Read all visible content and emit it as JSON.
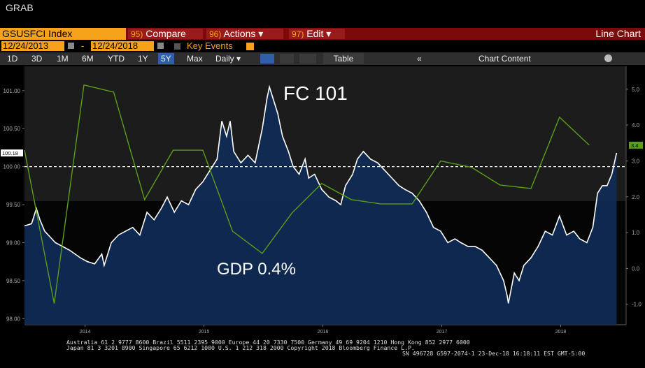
{
  "ui": {
    "window_title": "GRAB",
    "ticker": "GSUSFCI Index",
    "menu": [
      {
        "num": "95)",
        "label": "Compare"
      },
      {
        "num": "96)",
        "label": "Actions ▾"
      },
      {
        "num": "97)",
        "label": "Edit ▾"
      }
    ],
    "view_name": "Line Chart",
    "start_date": "12/24/2013",
    "date_sep": "-",
    "end_date": "12/24/2018",
    "key_events": "Key Events",
    "periods": [
      "1D",
      "3D",
      "1M",
      "6M",
      "YTD",
      "1Y",
      "5Y",
      "Max"
    ],
    "frequency": "Daily ▾",
    "table": "Table",
    "collapse": "«",
    "chart_content": "Chart Content",
    "footer": [
      "Australia 61 2 9777 8600 Brazil 5511 2395 9000 Europe 44 20 7330 7500 Germany 49 69 9204 1210 Hong Kong 852 2977 6000",
      "Japan 81 3 3201 8900       Singapore 65 6212 1000       U.S. 1 212 318 2000        Copyright 2018 Bloomberg Finance L.P.",
      "SN 496728 G597-2074-1 23-Dec-18 16:18:11 EST  GMT-5:00"
    ]
  },
  "chart_data": {
    "type": "line",
    "annotations": [
      "FC 101",
      "GDP 0.4%"
    ],
    "xlim": [
      2013.99,
      2019.05
    ],
    "xticks": [
      {
        "value": 2014.5,
        "label": "2014"
      },
      {
        "value": 2015.5,
        "label": "2015"
      },
      {
        "value": 2016.5,
        "label": "2016"
      },
      {
        "value": 2017.5,
        "label": "2017"
      },
      {
        "value": 2018.5,
        "label": "2018"
      }
    ],
    "ylim": [
      97.92,
      101.32
    ],
    "yticks": [
      {
        "value": 98,
        "label": "98.00"
      },
      {
        "value": 98.5,
        "label": "98.50"
      },
      {
        "value": 99,
        "label": "99.00"
      },
      {
        "value": 99.5,
        "label": "99.50"
      },
      {
        "value": 100,
        "label": "100.00"
      },
      {
        "value": 100.5,
        "label": "100.50"
      },
      {
        "value": 101,
        "label": "101.00"
      }
    ],
    "y2lim": [
      -1.57,
      5.64
    ],
    "y2ticks": [
      {
        "value": -1,
        "label": "-1.0"
      },
      {
        "value": 0,
        "label": "0.0"
      },
      {
        "value": 1,
        "label": "1.0"
      },
      {
        "value": 2,
        "label": "2.0"
      },
      {
        "value": 3,
        "label": "3.0"
      },
      {
        "value": 4,
        "label": "4.0"
      },
      {
        "value": 5,
        "label": "5.0"
      }
    ],
    "reference_line": 100,
    "series": [
      {
        "color": "#ffffff",
        "fill": "#0f2b57",
        "last_label": "100.18",
        "x": [
          2013.99,
          2014.05,
          2014.09,
          2014.12,
          2014.16,
          2014.25,
          2014.37,
          2014.46,
          2014.52,
          2014.58,
          2014.64,
          2014.66,
          2014.72,
          2014.78,
          2014.84,
          2014.9,
          2014.96,
          2015.02,
          2015.08,
          2015.14,
          2015.19,
          2015.25,
          2015.31,
          2015.37,
          2015.43,
          2015.49,
          2015.55,
          2015.61,
          2015.65,
          2015.69,
          2015.72,
          2015.75,
          2015.81,
          2015.87,
          2015.93,
          2015.99,
          2016.03,
          2016.05,
          2016.09,
          2016.12,
          2016.16,
          2016.21,
          2016.25,
          2016.3,
          2016.35,
          2016.38,
          2016.43,
          2016.49,
          2016.55,
          2016.61,
          2016.65,
          2016.69,
          2016.75,
          2016.79,
          2016.84,
          2016.9,
          2016.96,
          2017.02,
          2017.08,
          2017.14,
          2017.19,
          2017.25,
          2017.31,
          2017.37,
          2017.43,
          2017.49,
          2017.55,
          2017.61,
          2017.66,
          2017.72,
          2017.78,
          2017.84,
          2017.9,
          2017.96,
          2018.02,
          2018.05,
          2018.06,
          2018.11,
          2018.15,
          2018.19,
          2018.25,
          2018.31,
          2018.37,
          2018.43,
          2018.49,
          2018.55,
          2018.61,
          2018.66,
          2018.72,
          2018.77,
          2018.81,
          2018.85,
          2018.89,
          2018.93,
          2018.97
        ],
        "values": [
          99.22,
          99.25,
          99.45,
          99.3,
          99.15,
          99.0,
          98.9,
          98.8,
          98.75,
          98.72,
          98.85,
          98.7,
          99.0,
          99.1,
          99.15,
          99.2,
          99.1,
          99.4,
          99.3,
          99.45,
          99.6,
          99.4,
          99.55,
          99.5,
          99.7,
          99.8,
          99.95,
          100.1,
          100.6,
          100.4,
          100.6,
          100.2,
          100.05,
          100.15,
          100.05,
          100.5,
          100.9,
          101.05,
          100.85,
          100.7,
          100.4,
          100.2,
          100.0,
          99.9,
          100.1,
          99.85,
          99.9,
          99.7,
          99.6,
          99.55,
          99.5,
          99.75,
          99.9,
          100.1,
          100.2,
          100.1,
          100.05,
          99.95,
          99.85,
          99.75,
          99.7,
          99.65,
          99.55,
          99.4,
          99.2,
          99.15,
          99.0,
          99.05,
          99.0,
          98.95,
          98.95,
          98.9,
          98.8,
          98.7,
          98.5,
          98.3,
          98.2,
          98.6,
          98.5,
          98.7,
          98.8,
          98.95,
          99.15,
          99.1,
          99.35,
          99.1,
          99.15,
          99.05,
          99.0,
          99.2,
          99.65,
          99.75,
          99.75,
          99.9,
          100.18
        ]
      },
      {
        "color": "#5a9e1a",
        "axis": "y2",
        "last_label": "3.4",
        "x": [
          2013.99,
          2014.24,
          2014.49,
          2014.74,
          2015.0,
          2015.24,
          2015.49,
          2015.74,
          2015.99,
          2016.24,
          2016.49,
          2016.74,
          2016.99,
          2017.25,
          2017.49,
          2017.75,
          2017.99,
          2018.25,
          2018.49,
          2018.74
        ],
        "values": [
          3.3,
          -0.98,
          5.12,
          4.92,
          1.92,
          3.3,
          3.3,
          1.04,
          0.42,
          1.55,
          2.37,
          1.92,
          1.8,
          1.8,
          3.0,
          2.82,
          2.33,
          2.23,
          4.22,
          3.44
        ]
      }
    ]
  }
}
